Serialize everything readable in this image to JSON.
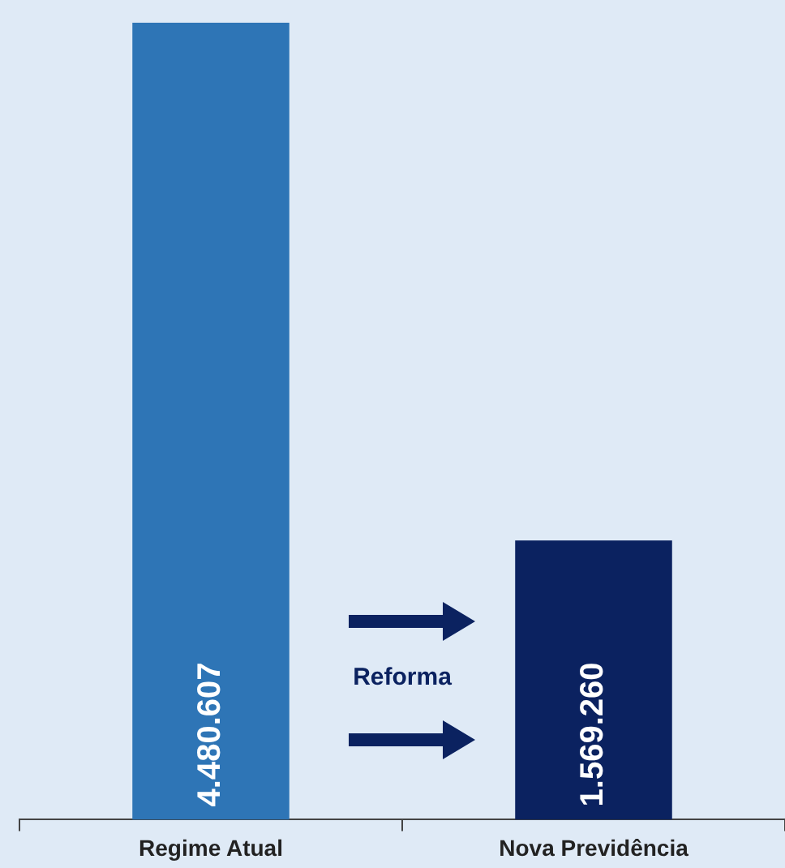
{
  "chart_data": {
    "type": "bar",
    "categories": [
      "Regime Atual",
      "Nova Previdência"
    ],
    "values": [
      4480607,
      1569260
    ],
    "colors": [
      "#2e75b6",
      "#0b2260"
    ],
    "value_labels": [
      "4.480.607",
      "1.569.260"
    ],
    "annotations": [
      "Reforma"
    ],
    "grid": false,
    "legend": false,
    "tick_labels": "x"
  }
}
